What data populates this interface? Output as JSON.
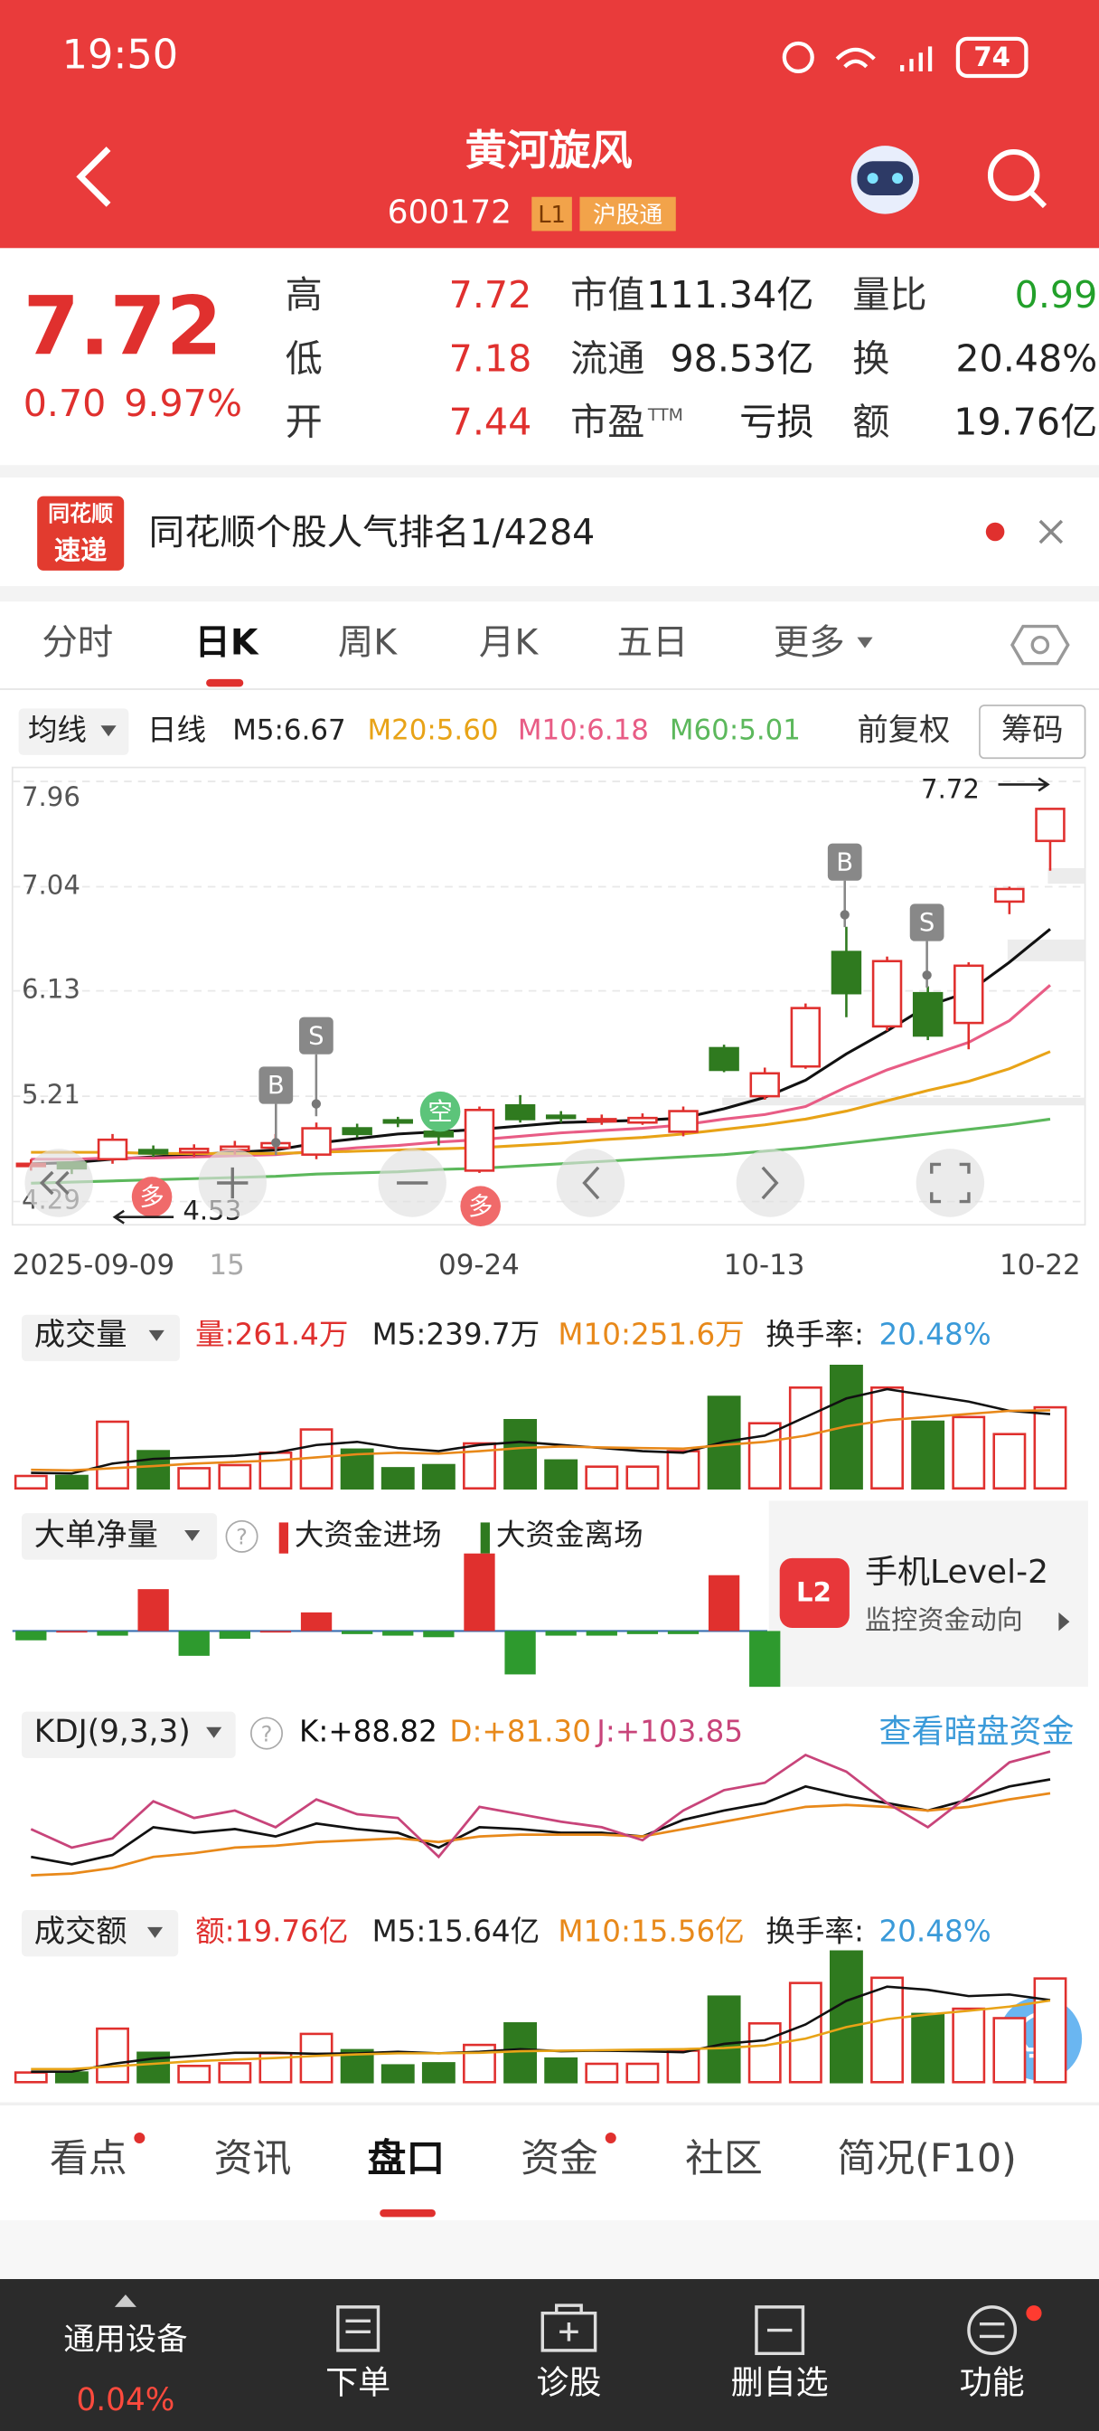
{
  "status": {
    "time": "19:50",
    "battery": "74"
  },
  "header": {
    "title": "黄河旋风",
    "code": "600172",
    "badges": [
      "L1",
      "沪股通"
    ]
  },
  "quote": {
    "price": "7.72",
    "change": "0.70",
    "change_pct": "9.97%",
    "fields": [
      [
        {
          "label": "高",
          "value": "7.72"
        },
        {
          "label": "低",
          "value": "7.18"
        },
        {
          "label": "开",
          "value": "7.44"
        }
      ],
      [
        {
          "label": "市值",
          "value": "111.34亿"
        },
        {
          "label": "流通",
          "value": "98.53亿"
        },
        {
          "label": "市盈",
          "sup": "TTM",
          "value": "亏损"
        }
      ],
      [
        {
          "label": "量比",
          "value": "0.99"
        },
        {
          "label": "换",
          "value": "20.48%"
        },
        {
          "label": "额",
          "value": "19.76亿"
        }
      ]
    ]
  },
  "banner": {
    "logo": [
      "同花顺",
      "速递"
    ],
    "text": "同花顺个股人气排名1/4284"
  },
  "tabs": {
    "items": [
      "分时",
      "日K",
      "周K",
      "月K",
      "五日",
      "更多"
    ],
    "active": 1
  },
  "indicator_bar": {
    "selector": "均线",
    "period": "日线",
    "ma_labels": [
      {
        "text": "M5:6.67",
        "color": "#222222"
      },
      {
        "text": "M20:5.60",
        "color": "#e8a317"
      },
      {
        "text": "M10:6.18",
        "color": "#e85c85"
      },
      {
        "text": "M60:5.01",
        "color": "#5cb85c"
      }
    ],
    "adjust": "前复权",
    "chips": "筹码"
  },
  "kline": {
    "type": "candlestick",
    "open": [
      4.6,
      4.63,
      4.66,
      4.74,
      4.72,
      4.74,
      4.76,
      4.7,
      4.93,
      5.0,
      4.9,
      4.56,
      5.13,
      5.04,
      4.99,
      4.98,
      4.9,
      5.63,
      5.21,
      5.47,
      6.47,
      5.82,
      6.11,
      5.85,
      6.91,
      7.44
    ],
    "close": [
      4.62,
      4.58,
      4.83,
      4.71,
      4.75,
      4.77,
      4.8,
      4.93,
      4.88,
      4.98,
      4.86,
      5.09,
      5.01,
      5.02,
      5.01,
      5.02,
      5.08,
      5.44,
      5.41,
      5.98,
      6.11,
      6.39,
      5.74,
      6.35,
      7.02,
      7.72
    ],
    "high": [
      4.66,
      4.64,
      4.88,
      4.78,
      4.79,
      4.82,
      4.88,
      4.98,
      4.97,
      5.03,
      4.94,
      5.12,
      5.22,
      5.08,
      5.05,
      5.06,
      5.12,
      5.66,
      5.46,
      6.02,
      6.69,
      6.43,
      6.17,
      6.38,
      7.04,
      7.72
    ],
    "low": [
      4.56,
      4.53,
      4.62,
      4.68,
      4.68,
      4.7,
      4.72,
      4.66,
      4.85,
      4.94,
      4.78,
      4.54,
      4.98,
      4.98,
      4.96,
      4.96,
      4.86,
      5.42,
      5.18,
      5.45,
      5.9,
      5.78,
      5.7,
      5.62,
      6.8,
      7.18
    ],
    "ylim": [
      4.29,
      7.96
    ],
    "yticks": [
      7.96,
      7.04,
      6.13,
      5.21,
      4.29
    ],
    "grid": true,
    "up_color": "#e0302e",
    "down_color": "#2f7a1f",
    "ma": [
      {
        "color": "#111111",
        "values": [
          4.62,
          4.63,
          4.66,
          4.68,
          4.7,
          4.72,
          4.74,
          4.8,
          4.84,
          4.88,
          4.9,
          4.92,
          4.95,
          4.98,
          4.99,
          5.0,
          5.02,
          5.1,
          5.2,
          5.35,
          5.58,
          5.78,
          6.0,
          6.12,
          6.38,
          6.67
        ]
      },
      {
        "color": "#e85c85",
        "values": [
          4.66,
          4.66,
          4.67,
          4.67,
          4.68,
          4.69,
          4.7,
          4.73,
          4.76,
          4.78,
          4.81,
          4.83,
          4.86,
          4.89,
          4.91,
          4.93,
          4.96,
          5.01,
          5.05,
          5.12,
          5.29,
          5.44,
          5.56,
          5.68,
          5.87,
          6.18
        ]
      },
      {
        "color": "#e8a317",
        "values": [
          4.72,
          4.72,
          4.72,
          4.71,
          4.71,
          4.71,
          4.71,
          4.72,
          4.73,
          4.74,
          4.75,
          4.76,
          4.78,
          4.8,
          4.83,
          4.85,
          4.88,
          4.92,
          4.96,
          5.01,
          5.08,
          5.17,
          5.26,
          5.34,
          5.45,
          5.6
        ]
      },
      {
        "color": "#5cb85c",
        "values": [
          4.45,
          4.46,
          4.47,
          4.48,
          4.49,
          4.5,
          4.51,
          4.53,
          4.54,
          4.55,
          4.57,
          4.58,
          4.6,
          4.62,
          4.64,
          4.66,
          4.68,
          4.7,
          4.73,
          4.76,
          4.8,
          4.84,
          4.88,
          4.92,
          4.96,
          5.01
        ]
      }
    ],
    "x_labels": [
      "2025-09-09",
      "15",
      "09-24",
      "10-13",
      "10-22"
    ],
    "max_label": "7.72",
    "min_label": "4.53",
    "markers": [
      "B",
      "S",
      "空",
      "多",
      "多",
      "B",
      "S"
    ]
  },
  "volume": {
    "type": "bar",
    "title": "成交量",
    "labels": [
      {
        "text": "量:261.4万",
        "color": "#e0302e"
      },
      {
        "text": "M5:239.7万",
        "color": "#222222"
      },
      {
        "text": "M10:251.6万",
        "color": "#e8891a"
      }
    ],
    "turnover_label": "换手率:",
    "turnover": "20.48%",
    "values": [
      40,
      40,
      215,
      120,
      65,
      75,
      115,
      190,
      125,
      65,
      75,
      145,
      220,
      90,
      70,
      70,
      120,
      295,
      210,
      325,
      395,
      325,
      215,
      230,
      175,
      261.4
    ],
    "ylim": [
      0,
      400
    ],
    "ma": [
      {
        "color": "#111111",
        "values": [
          50,
          48,
          80,
          95,
          100,
          105,
          115,
          140,
          150,
          130,
          120,
          140,
          150,
          140,
          130,
          120,
          115,
          150,
          170,
          230,
          290,
          320,
          300,
          280,
          250,
          239.7
        ]
      },
      {
        "color": "#e8891a",
        "values": [
          60,
          58,
          65,
          72,
          80,
          85,
          90,
          100,
          110,
          115,
          112,
          120,
          130,
          135,
          132,
          130,
          128,
          140,
          150,
          170,
          200,
          220,
          230,
          240,
          250,
          251.6
        ]
      }
    ]
  },
  "big_order": {
    "type": "bar",
    "title": "大单净量",
    "help": "?",
    "legend": [
      "大资金进场",
      "大资金离场"
    ],
    "values": [
      -6,
      0,
      -3,
      27,
      -16,
      -5,
      0,
      12,
      -2,
      -3,
      -4,
      50,
      -28,
      -3,
      -3,
      -2,
      -2,
      36,
      -36
    ],
    "ylim": [
      -40,
      60
    ],
    "ad": {
      "icon": "L2",
      "title": "手机Level-2",
      "subtitle": "监控资金动向"
    }
  },
  "kdj": {
    "type": "line",
    "title": "KDJ(9,3,3)",
    "help": "?",
    "link": "查看暗盘资金",
    "ylim": [
      30,
      112
    ],
    "series": [
      {
        "label": "K:+88.82",
        "color": "#111111",
        "values": [
          47,
          43,
          48,
          63,
          60,
          62,
          58,
          65,
          62,
          60,
          52,
          63,
          62,
          60,
          60,
          58,
          67,
          72,
          76,
          85,
          80,
          76,
          72,
          78,
          85,
          88.82
        ]
      },
      {
        "label": "D:+81.30",
        "color": "#e8891a",
        "values": [
          37,
          38,
          41,
          47,
          49,
          52,
          53,
          55,
          56,
          57,
          55,
          58,
          59,
          59,
          59,
          58,
          62,
          66,
          70,
          74,
          75,
          74,
          72,
          74,
          78,
          81.3
        ]
      },
      {
        "label": "J:+103.85",
        "color": "#c8447a",
        "values": [
          62,
          52,
          57,
          77,
          68,
          72,
          63,
          78,
          70,
          68,
          47,
          74,
          70,
          66,
          63,
          56,
          72,
          83,
          87,
          102,
          93,
          76,
          63,
          80,
          98,
          103.85
        ]
      }
    ]
  },
  "amount": {
    "type": "bar",
    "title": "成交额",
    "labels": [
      {
        "text": "额:19.76亿",
        "color": "#e0302e"
      },
      {
        "text": "M5:15.64亿",
        "color": "#222222"
      },
      {
        "text": "M10:15.56亿",
        "color": "#e8891a"
      }
    ],
    "turnover_label": "换手率:",
    "turnover": "20.48%",
    "values": [
      1.84,
      1.84,
      10.2,
      5.6,
      3.1,
      3.6,
      5.5,
      9.2,
      6.1,
      3.2,
      3.6,
      7.1,
      11.2,
      4.5,
      3.5,
      3.5,
      6.0,
      16.3,
      11.2,
      18.9,
      24.9,
      19.9,
      13.0,
      14.0,
      12.2,
      19.76
    ],
    "ylim": [
      0,
      26
    ],
    "ma": [
      {
        "color": "#111111",
        "values": [
          2,
          2,
          3.5,
          4.5,
          5,
          5.6,
          5.6,
          5.4,
          5.5,
          5.8,
          5.5,
          5.8,
          6.3,
          5.9,
          6.0,
          5.9,
          5.7,
          7.3,
          8.0,
          11.0,
          15.5,
          18.2,
          17.6,
          16.4,
          16.7,
          15.64
        ]
      },
      {
        "color": "#e8a317",
        "values": [
          2.5,
          2.5,
          3,
          3.5,
          4,
          4.3,
          4.6,
          5,
          5.3,
          5.5,
          5.5,
          5.6,
          5.9,
          6.0,
          6.1,
          6.2,
          6.3,
          6.5,
          7.0,
          8.3,
          10.5,
          12.0,
          12.9,
          13.6,
          14.4,
          15.56
        ]
      }
    ]
  },
  "bottom_tabs": {
    "items": [
      "看点",
      "资讯",
      "盘口",
      "资金",
      "社区",
      "简况(F10)"
    ],
    "active": 2,
    "dots": [
      0,
      3
    ]
  },
  "bottom_nav": {
    "sector": "通用设备",
    "sector_change": "0.04%",
    "items": [
      "下单",
      "诊股",
      "删自选",
      "功能"
    ]
  }
}
